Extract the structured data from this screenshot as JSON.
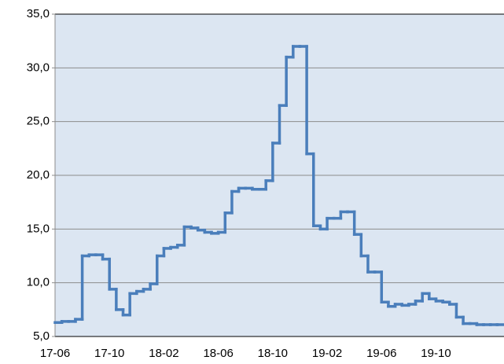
{
  "chart_data": {
    "type": "step-line",
    "categories": [
      "17-06",
      null,
      null,
      null,
      null,
      null,
      null,
      null,
      "17-10",
      null,
      null,
      null,
      null,
      null,
      null,
      null,
      "18-02",
      null,
      null,
      null,
      null,
      null,
      null,
      null,
      "18-06",
      null,
      null,
      null,
      null,
      null,
      null,
      null,
      "18-10",
      null,
      null,
      null,
      null,
      null,
      null,
      null,
      "19-02",
      null,
      null,
      null,
      null,
      null,
      null,
      null,
      "19-06",
      null,
      null,
      null,
      null,
      null,
      null,
      null,
      "19-10",
      null,
      null,
      null,
      null,
      null,
      null,
      null,
      null,
      null
    ],
    "values": [
      6.3,
      6.4,
      6.4,
      6.6,
      12.5,
      12.6,
      12.6,
      12.2,
      9.4,
      7.5,
      7.0,
      9.0,
      9.2,
      9.4,
      9.9,
      12.5,
      13.2,
      13.3,
      13.5,
      15.2,
      15.1,
      14.9,
      14.7,
      14.6,
      14.7,
      16.5,
      18.5,
      18.8,
      18.8,
      18.7,
      18.7,
      19.5,
      23.0,
      26.5,
      31.0,
      32.0,
      32.0,
      22.0,
      15.3,
      15.0,
      16.0,
      16.0,
      16.6,
      16.6,
      14.5,
      12.5,
      11.0,
      11.0,
      8.2,
      7.8,
      8.0,
      7.9,
      8.0,
      8.3,
      9.0,
      8.5,
      8.3,
      8.2,
      8.0,
      6.8,
      6.2,
      6.2,
      6.1,
      6.1,
      6.1,
      6.1
    ],
    "color": "#4a7ebb",
    "ylim": [
      5,
      35
    ],
    "yticks": [
      {
        "value": 5,
        "label": "5,0"
      },
      {
        "value": 10,
        "label": "10,0"
      },
      {
        "value": 15,
        "label": "15,0"
      },
      {
        "value": 20,
        "label": "20,0"
      },
      {
        "value": 25,
        "label": "25,0"
      },
      {
        "value": 30,
        "label": "30,0"
      },
      {
        "value": 35,
        "label": "35,0"
      }
    ],
    "grid": true
  }
}
